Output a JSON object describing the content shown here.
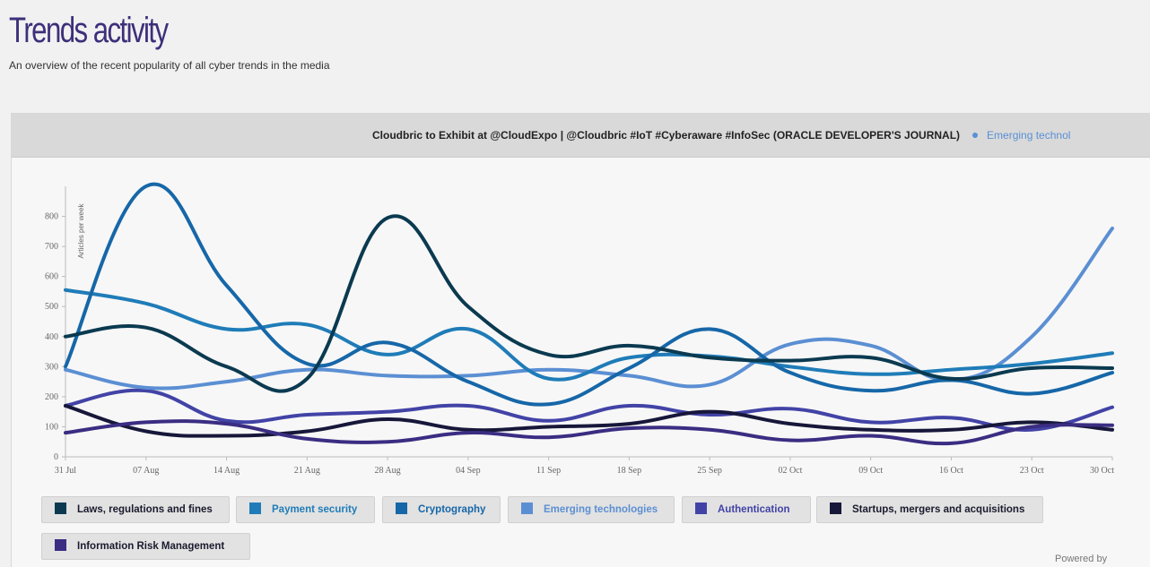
{
  "header": {
    "title": "Trends activity",
    "subtitle": "An overview of the recent popularity of all cyber trends in the media"
  },
  "news": {
    "headline": "Cloudbric to Exhibit at @CloudExpo | @Cloudbric #IoT #Cyberaware #InfoSec (ORACLE DEVELOPER'S JOURNAL)",
    "tag": "Emerging technol"
  },
  "footer": {
    "powered_by": "Powered by"
  },
  "chart_data": {
    "type": "line",
    "xlabel": "",
    "ylabel": "Articles per week",
    "ylim": [
      0,
      900
    ],
    "yticks": [
      0,
      100,
      200,
      300,
      400,
      500,
      600,
      700,
      800
    ],
    "categories": [
      "31 Jul",
      "07 Aug",
      "14 Aug",
      "21 Aug",
      "28 Aug",
      "04 Sep",
      "11 Sep",
      "18 Sep",
      "25 Sep",
      "02 Oct",
      "09 Oct",
      "16 Oct",
      "23 Oct",
      "30 Oct"
    ],
    "series": [
      {
        "name": "Laws, regulations and fines",
        "color": "#0b3a50",
        "values": [
          400,
          430,
          300,
          260,
          795,
          500,
          340,
          370,
          330,
          320,
          330,
          260,
          295,
          295
        ]
      },
      {
        "name": "Payment security",
        "color": "#1f7cb8",
        "values": [
          555,
          510,
          425,
          440,
          340,
          425,
          260,
          330,
          335,
          300,
          275,
          290,
          310,
          345
        ]
      },
      {
        "name": "Cryptography",
        "color": "#1667a8",
        "values": [
          300,
          900,
          570,
          310,
          380,
          250,
          175,
          295,
          425,
          280,
          220,
          255,
          210,
          280
        ]
      },
      {
        "name": "Emerging technologies",
        "color": "#5b8fd3",
        "values": [
          290,
          230,
          250,
          290,
          270,
          270,
          290,
          270,
          240,
          375,
          370,
          255,
          400,
          760
        ]
      },
      {
        "name": "Authentication",
        "color": "#4243a6",
        "values": [
          170,
          220,
          120,
          140,
          150,
          170,
          120,
          170,
          140,
          160,
          115,
          130,
          90,
          165
        ]
      },
      {
        "name": "Startups, mergers and acquisitions",
        "color": "#17173a",
        "values": [
          170,
          85,
          70,
          85,
          125,
          90,
          100,
          110,
          150,
          110,
          90,
          90,
          115,
          90
        ]
      },
      {
        "name": "Information Risk Management",
        "color": "#3a2d82",
        "values": [
          80,
          115,
          110,
          60,
          50,
          80,
          65,
          95,
          90,
          55,
          70,
          45,
          100,
          105
        ]
      }
    ]
  }
}
